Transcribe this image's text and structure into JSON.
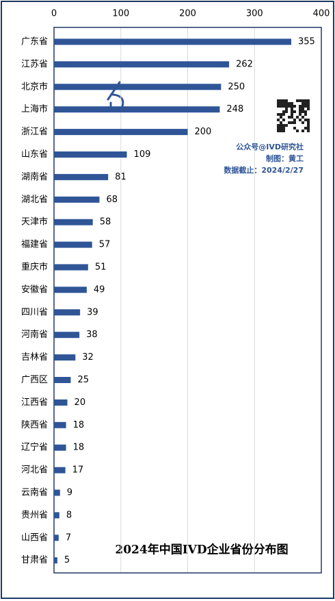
{
  "chart_data": {
    "type": "bar",
    "orientation": "horizontal",
    "title": "2024年中国IVD企业省份分布图",
    "categories": [
      "广东省",
      "江苏省",
      "北京市",
      "上海市",
      "浙江省",
      "山东省",
      "湖南省",
      "湖北省",
      "天津市",
      "福建省",
      "重庆市",
      "安徽省",
      "四川省",
      "河南省",
      "吉林省",
      "广西区",
      "江西省",
      "陕西省",
      "辽宁省",
      "河北省",
      "云南省",
      "贵州省",
      "山西省",
      "甘肃省"
    ],
    "values": [
      355,
      262,
      250,
      248,
      200,
      109,
      81,
      68,
      58,
      57,
      51,
      49,
      39,
      38,
      32,
      25,
      20,
      18,
      18,
      17,
      9,
      8,
      7,
      5
    ],
    "color": "#2f5597",
    "xlim": [
      0,
      400
    ],
    "xticks": [
      0,
      100,
      200,
      300,
      400
    ],
    "grid": true,
    "annotations": [
      "公众号@IVD研究社",
      "制图：黄工",
      "数据截止：2024/2/27"
    ]
  }
}
